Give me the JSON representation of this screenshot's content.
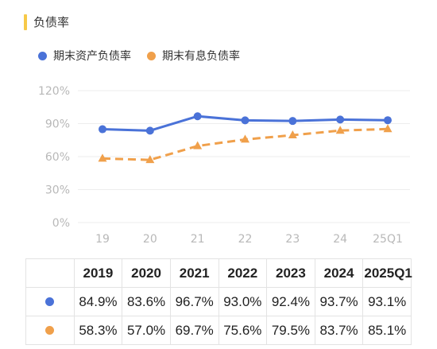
{
  "title": "负债率",
  "colors": {
    "accent_bar": "#f7c948",
    "series1": "#4a72d8",
    "series2": "#f0a04b",
    "grid": "#ededed"
  },
  "chart_data": {
    "type": "line",
    "categories": [
      "19",
      "20",
      "21",
      "22",
      "23",
      "24",
      "25Q1"
    ],
    "series": [
      {
        "name": "期末资产负债率",
        "values": [
          84.9,
          83.6,
          96.7,
          93.0,
          92.4,
          93.7,
          93.1
        ],
        "style": "solid",
        "marker": "circle"
      },
      {
        "name": "期末有息负债率",
        "values": [
          58.3,
          57.0,
          69.7,
          75.6,
          79.5,
          83.7,
          85.1
        ],
        "style": "dashed",
        "marker": "triangle"
      }
    ],
    "y_ticks": [
      "120%",
      "90%",
      "60%",
      "30%",
      "0%"
    ],
    "ylim": [
      0,
      120
    ],
    "grid": true,
    "legend": "top-left"
  },
  "table": {
    "headers": [
      "2019",
      "2020",
      "2021",
      "2022",
      "2023",
      "2024",
      "2025Q1"
    ],
    "rows": [
      [
        "84.9%",
        "83.6%",
        "96.7%",
        "93.0%",
        "92.4%",
        "93.7%",
        "93.1%"
      ],
      [
        "58.3%",
        "57.0%",
        "69.7%",
        "75.6%",
        "79.5%",
        "83.7%",
        "85.1%"
      ]
    ]
  }
}
